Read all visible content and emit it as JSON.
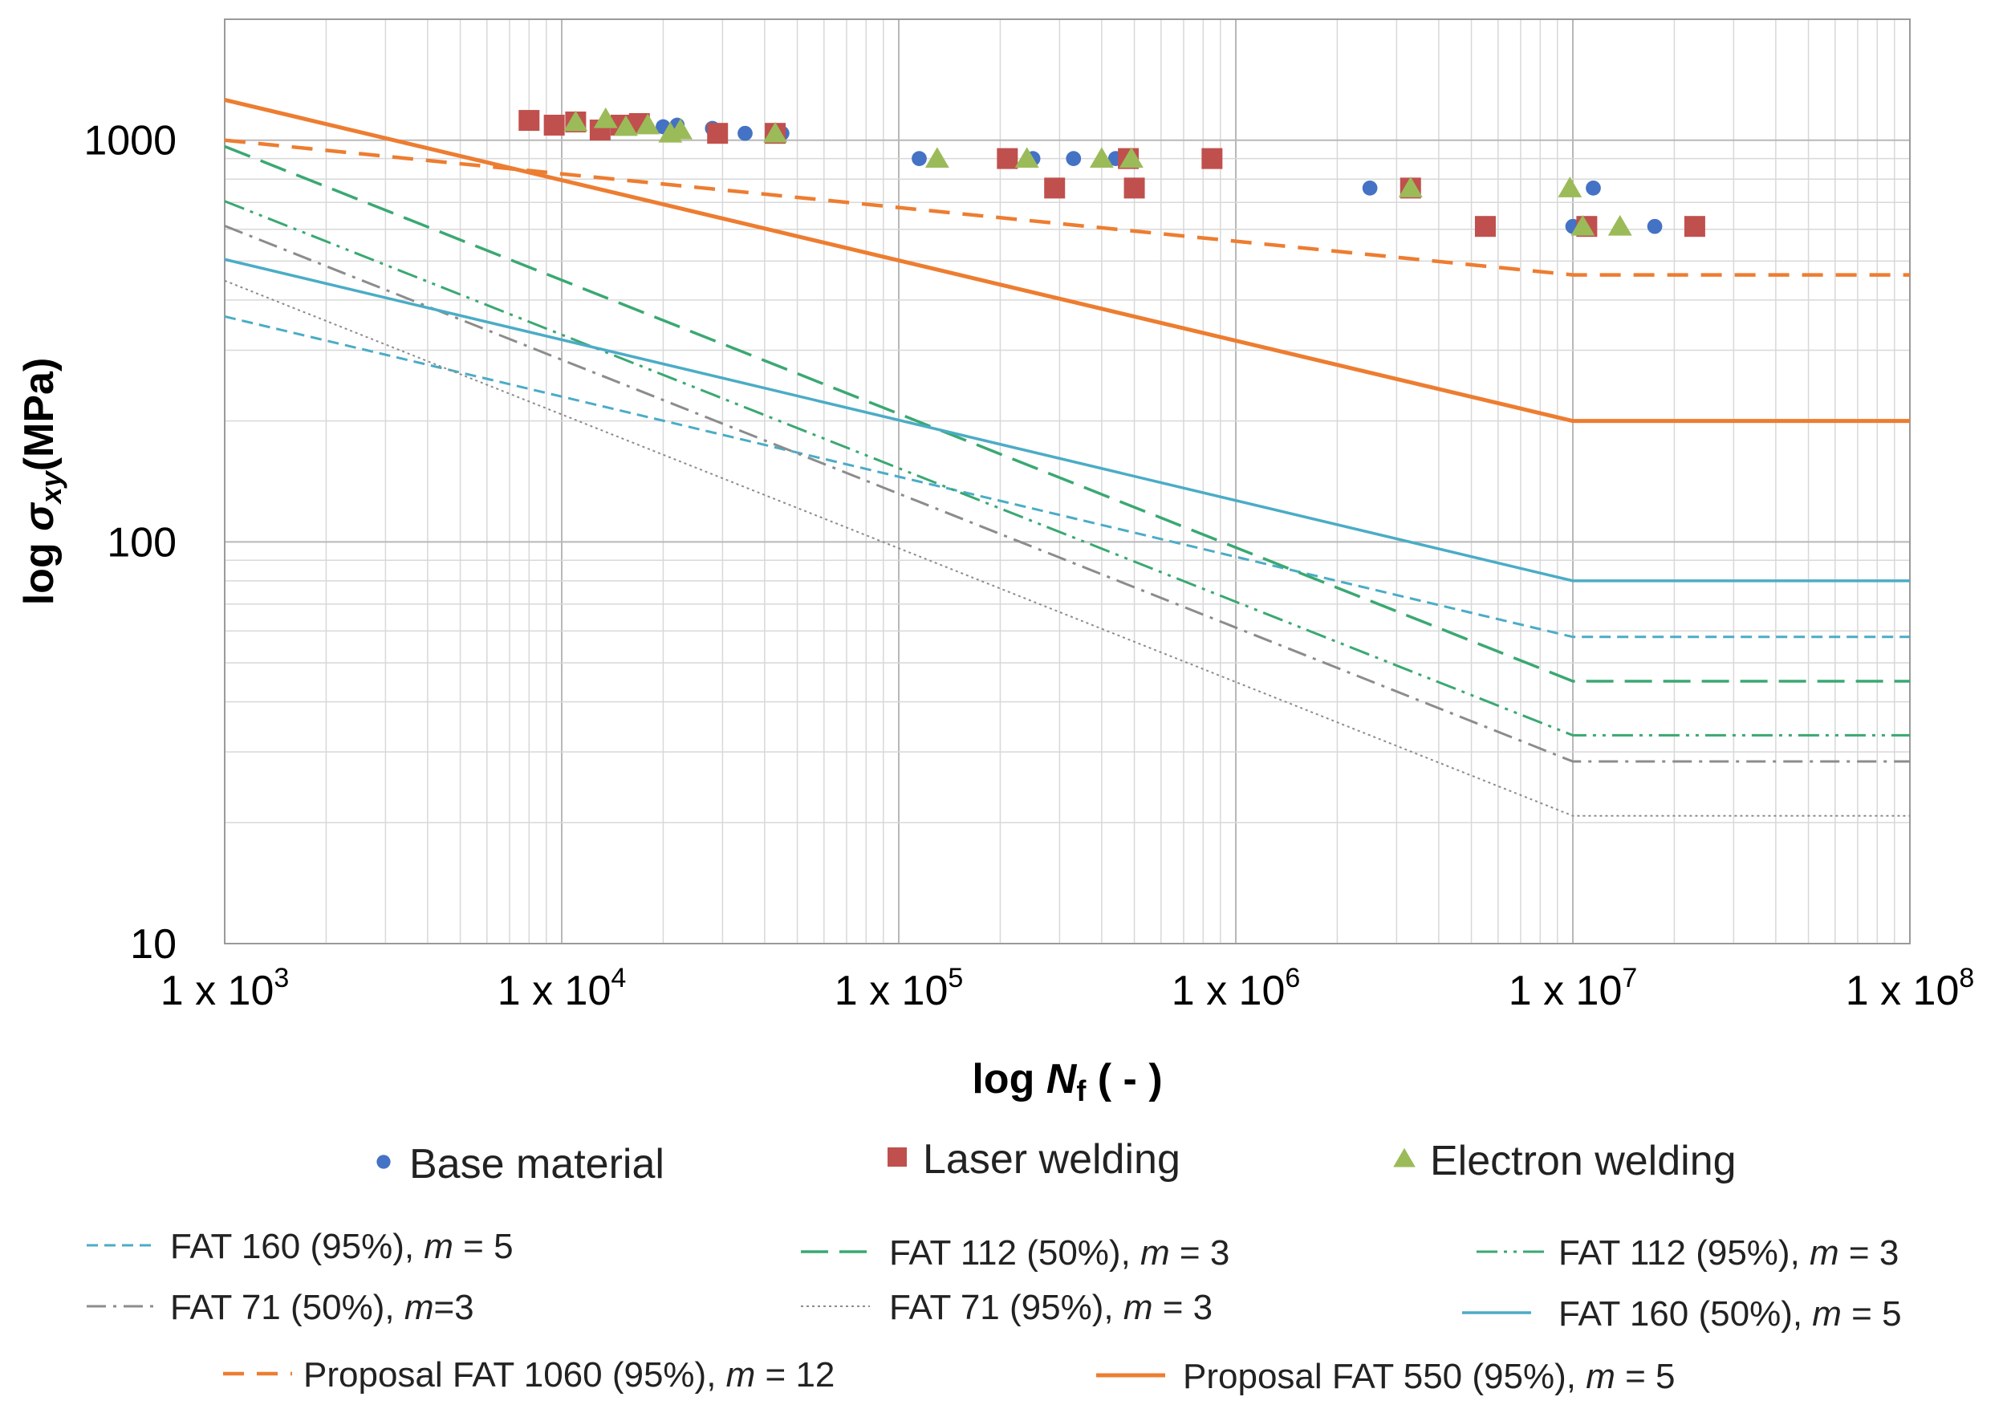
{
  "chart_data": {
    "type": "scatter",
    "xscale": "log",
    "yscale": "log",
    "xlim": [
      1000,
      100000000
    ],
    "ylim": [
      10,
      2000
    ],
    "grid": true,
    "xlabel": {
      "prefix": "log ",
      "symbol": "N",
      "sub": "f",
      "suffix": " ( - )"
    },
    "ylabel": {
      "prefix": "log ",
      "symbol": "σ",
      "sub": "xy",
      "suffix": "(MPa)"
    },
    "x_ticks": [
      {
        "value": 1000,
        "base": "1 x 10",
        "exp": "3"
      },
      {
        "value": 10000,
        "base": "1 x 10",
        "exp": "4"
      },
      {
        "value": 100000,
        "base": "1 x 10",
        "exp": "5"
      },
      {
        "value": 1000000,
        "base": "1 x 10",
        "exp": "6"
      },
      {
        "value": 10000000,
        "base": "1 x 10",
        "exp": "7"
      },
      {
        "value": 100000000,
        "base": "1 x 10",
        "exp": "8"
      }
    ],
    "y_ticks": [
      {
        "value": 10,
        "label": "10"
      },
      {
        "value": 100,
        "label": "100"
      },
      {
        "value": 1000,
        "label": "1000"
      }
    ],
    "legend_position": "bottom",
    "point_series": [
      {
        "name": "Base material",
        "marker": "circle",
        "color": "#4472C4",
        "points": [
          [
            17000,
            1110
          ],
          [
            20000,
            1080
          ],
          [
            22000,
            1090
          ],
          [
            28000,
            1070
          ],
          [
            35000,
            1040
          ],
          [
            45000,
            1040
          ],
          [
            115000,
            900
          ],
          [
            250000,
            900
          ],
          [
            330000,
            900
          ],
          [
            440000,
            900
          ],
          [
            2500000,
            760
          ],
          [
            10000000,
            610
          ],
          [
            11500000,
            760
          ],
          [
            17500000,
            610
          ]
        ]
      },
      {
        "name": "Laser welding",
        "marker": "square",
        "color": "#C0504D",
        "points": [
          [
            8000,
            1120
          ],
          [
            9500,
            1090
          ],
          [
            11000,
            1110
          ],
          [
            13000,
            1060
          ],
          [
            15000,
            1090
          ],
          [
            17000,
            1100
          ],
          [
            29000,
            1040
          ],
          [
            43000,
            1040
          ],
          [
            210000,
            900
          ],
          [
            290000,
            760
          ],
          [
            480000,
            900
          ],
          [
            500000,
            760
          ],
          [
            850000,
            900
          ],
          [
            3300000,
            760
          ],
          [
            5500000,
            610
          ],
          [
            11000000,
            610
          ],
          [
            23000000,
            610
          ]
        ]
      },
      {
        "name": "Electron welding",
        "marker": "triangle",
        "color": "#9BBB59",
        "points": [
          [
            11000,
            1110
          ],
          [
            13500,
            1130
          ],
          [
            15500,
            1080
          ],
          [
            18000,
            1090
          ],
          [
            21000,
            1040
          ],
          [
            22500,
            1060
          ],
          [
            43000,
            1040
          ],
          [
            130000,
            900
          ],
          [
            240000,
            900
          ],
          [
            400000,
            900
          ],
          [
            490000,
            900
          ],
          [
            3300000,
            760
          ],
          [
            9800000,
            760
          ],
          [
            10700000,
            610
          ],
          [
            13800000,
            610
          ]
        ]
      }
    ],
    "line_series": [
      {
        "name": "FAT 160 (95%), m = 5",
        "label_pre": "FAT 160 (95%), ",
        "m_value": " = 5",
        "color": "#4BACC6",
        "width": 3,
        "dash": "14 8",
        "fat": 160,
        "m": 5,
        "sigma_start": 364,
        "sigma_end": 58
      },
      {
        "name": "FAT 112 (50%), m = 3",
        "label_pre": "FAT 112 (50%), ",
        "m_value": " = 3",
        "color": "#3AA872",
        "width": 3.5,
        "dash": "34 14",
        "fat": 112,
        "m": 3,
        "sigma_start": 965,
        "sigma_end": 45
      },
      {
        "name": "FAT 112 (95%), m = 3",
        "label_pre": "FAT 112 (95%), ",
        "m_value": " = 3",
        "color": "#3AA872",
        "width": 3,
        "dash": "26 8 4 8 4 8",
        "fat": 112,
        "m": 3,
        "sigma_start": 705,
        "sigma_end": 33
      },
      {
        "name": "FAT 71 (50%), m=3",
        "label_pre": "FAT 71 (50%), ",
        "m_value": "=3",
        "color": "#8C8C8C",
        "width": 3,
        "dash": "24 9 4 9",
        "fat": 71,
        "m": 3,
        "sigma_start": 612,
        "sigma_end": 28.4
      },
      {
        "name": "FAT 71 (95%), m = 3",
        "label_pre": "FAT 71 (95%), ",
        "m_value": " = 3",
        "color": "#8C8C8C",
        "width": 2,
        "dash": "3 4",
        "fat": 71,
        "m": 3,
        "sigma_start": 447,
        "sigma_end": 20.8
      },
      {
        "name": "FAT 160 (50%), m = 5",
        "label_pre": "FAT 160 (50%), ",
        "m_value": " = 5",
        "color": "#4BACC6",
        "width": 3.5,
        "dash": "",
        "fat": 160,
        "m": 5,
        "sigma_start": 505,
        "sigma_end": 80
      },
      {
        "name": "Proposal FAT 1060 (95%), m = 12",
        "label_pre": "Proposal  FAT 1060 (95%), ",
        "m_value": " = 12",
        "color": "#ED7D31",
        "width": 4.5,
        "dash": "26 16",
        "fat": 1060,
        "m": 12,
        "sigma_start": 1000,
        "sigma_end": 462
      },
      {
        "name": "Proposal FAT 550 (95%), m = 5",
        "label_pre": "Proposal  FAT 550 (95%), ",
        "m_value": " = 5",
        "color": "#ED7D31",
        "width": 5,
        "dash": "",
        "fat": 550,
        "m": 5,
        "sigma_start": 1260,
        "sigma_end": 200
      }
    ],
    "knee_cycles": 10000000,
    "m_symbol": "m"
  }
}
